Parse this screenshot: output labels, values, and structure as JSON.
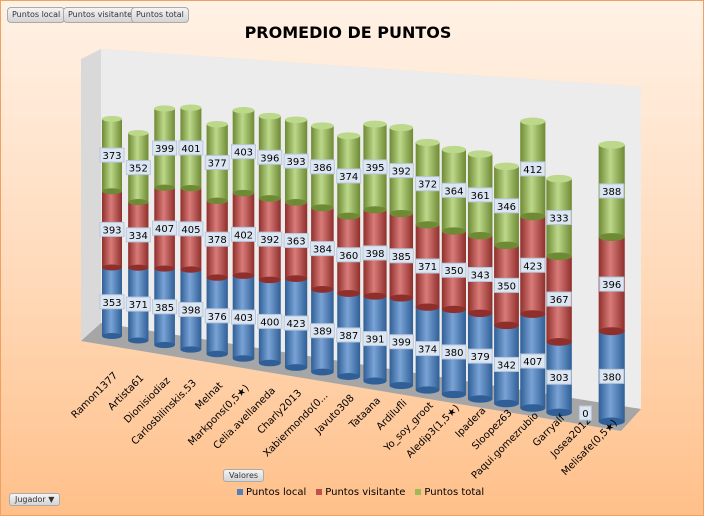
{
  "filter_buttons": [
    "Puntos local",
    "Puntos visitante",
    "Puntos total"
  ],
  "valores_button": "Valores",
  "jugador_button": "Jugador",
  "jugador_arrow": "▼",
  "chart_data": {
    "type": "bar",
    "subtype": "3d-stacked-cylinder",
    "title": "PROMEDIO DE PUNTOS",
    "legend_position": "bottom",
    "categories": [
      "Ramon1377",
      "Artista61",
      "Dionisiodiaz",
      "Carlosbilinskis.53",
      "Melnat",
      "Markpons(0,5★)",
      "Celia.avellaneda",
      "Charly2013",
      "Xabiermondo(0...",
      "Javuto308",
      "Tataana",
      "Ardilufli",
      "Yo_soy_groot",
      "Aledip3(1,5★)",
      "Ipadera",
      "Sloopez63",
      "Paqui.gomezrubio",
      "Garryalf",
      "Josea2012",
      "Melisafe(0,5★)"
    ],
    "series": [
      {
        "name": "Puntos local",
        "color": "#4f81bd",
        "values": [
          353,
          371,
          385,
          398,
          376,
          403,
          400,
          423,
          389,
          387,
          391,
          399,
          374,
          380,
          379,
          342,
          407,
          303,
          0,
          380
        ]
      },
      {
        "name": "Puntos visitante",
        "color": "#c0504d",
        "values": [
          393,
          334,
          407,
          405,
          378,
          402,
          392,
          363,
          384,
          360,
          398,
          385,
          371,
          350,
          343,
          350,
          423,
          367,
          0,
          396
        ]
      },
      {
        "name": "Puntos total",
        "color": "#9bbb59",
        "values": [
          373,
          352,
          399,
          401,
          377,
          403,
          396,
          393,
          386,
          374,
          395,
          392,
          372,
          364,
          361,
          346,
          412,
          333,
          0,
          388
        ]
      }
    ]
  }
}
